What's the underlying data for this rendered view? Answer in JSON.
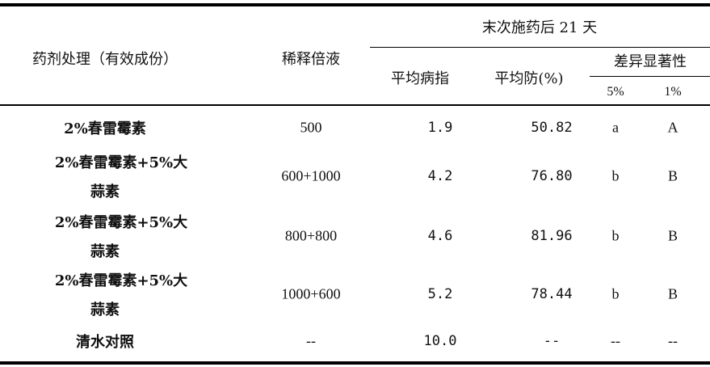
{
  "header": {
    "treatment": "药剂处理（有效成份）",
    "dilution": "稀释倍液",
    "group": "末次施药后 21 天",
    "avg_index": "平均病指",
    "avg_effect": "平均防(%)",
    "significance": "差异显著性",
    "p5": "5%",
    "p1": "1%"
  },
  "rows": [
    {
      "treatment": [
        "2%春雷霉素"
      ],
      "dilution": "500",
      "index": "1.9",
      "effect": "50.82",
      "s5": "a",
      "s1": "A"
    },
    {
      "treatment": [
        "2%春雷霉素+5%大",
        "蒜素"
      ],
      "dilution": "600+1000",
      "index": "4.2",
      "effect": "76.80",
      "s5": "b",
      "s1": "B"
    },
    {
      "treatment": [
        "2%春雷霉素+5%大",
        "蒜素"
      ],
      "dilution": "800+800",
      "index": "4.6",
      "effect": "81.96",
      "s5": "b",
      "s1": "B"
    },
    {
      "treatment": [
        "2%春雷霉素+5%大",
        "蒜素"
      ],
      "dilution": "1000+600",
      "index": "5.2",
      "effect": "78.44",
      "s5": "b",
      "s1": "B"
    },
    {
      "treatment": [
        "清水对照"
      ],
      "dilution": "--",
      "index": "10.0",
      "effect": "--",
      "s5": "--",
      "s1": "--"
    }
  ]
}
